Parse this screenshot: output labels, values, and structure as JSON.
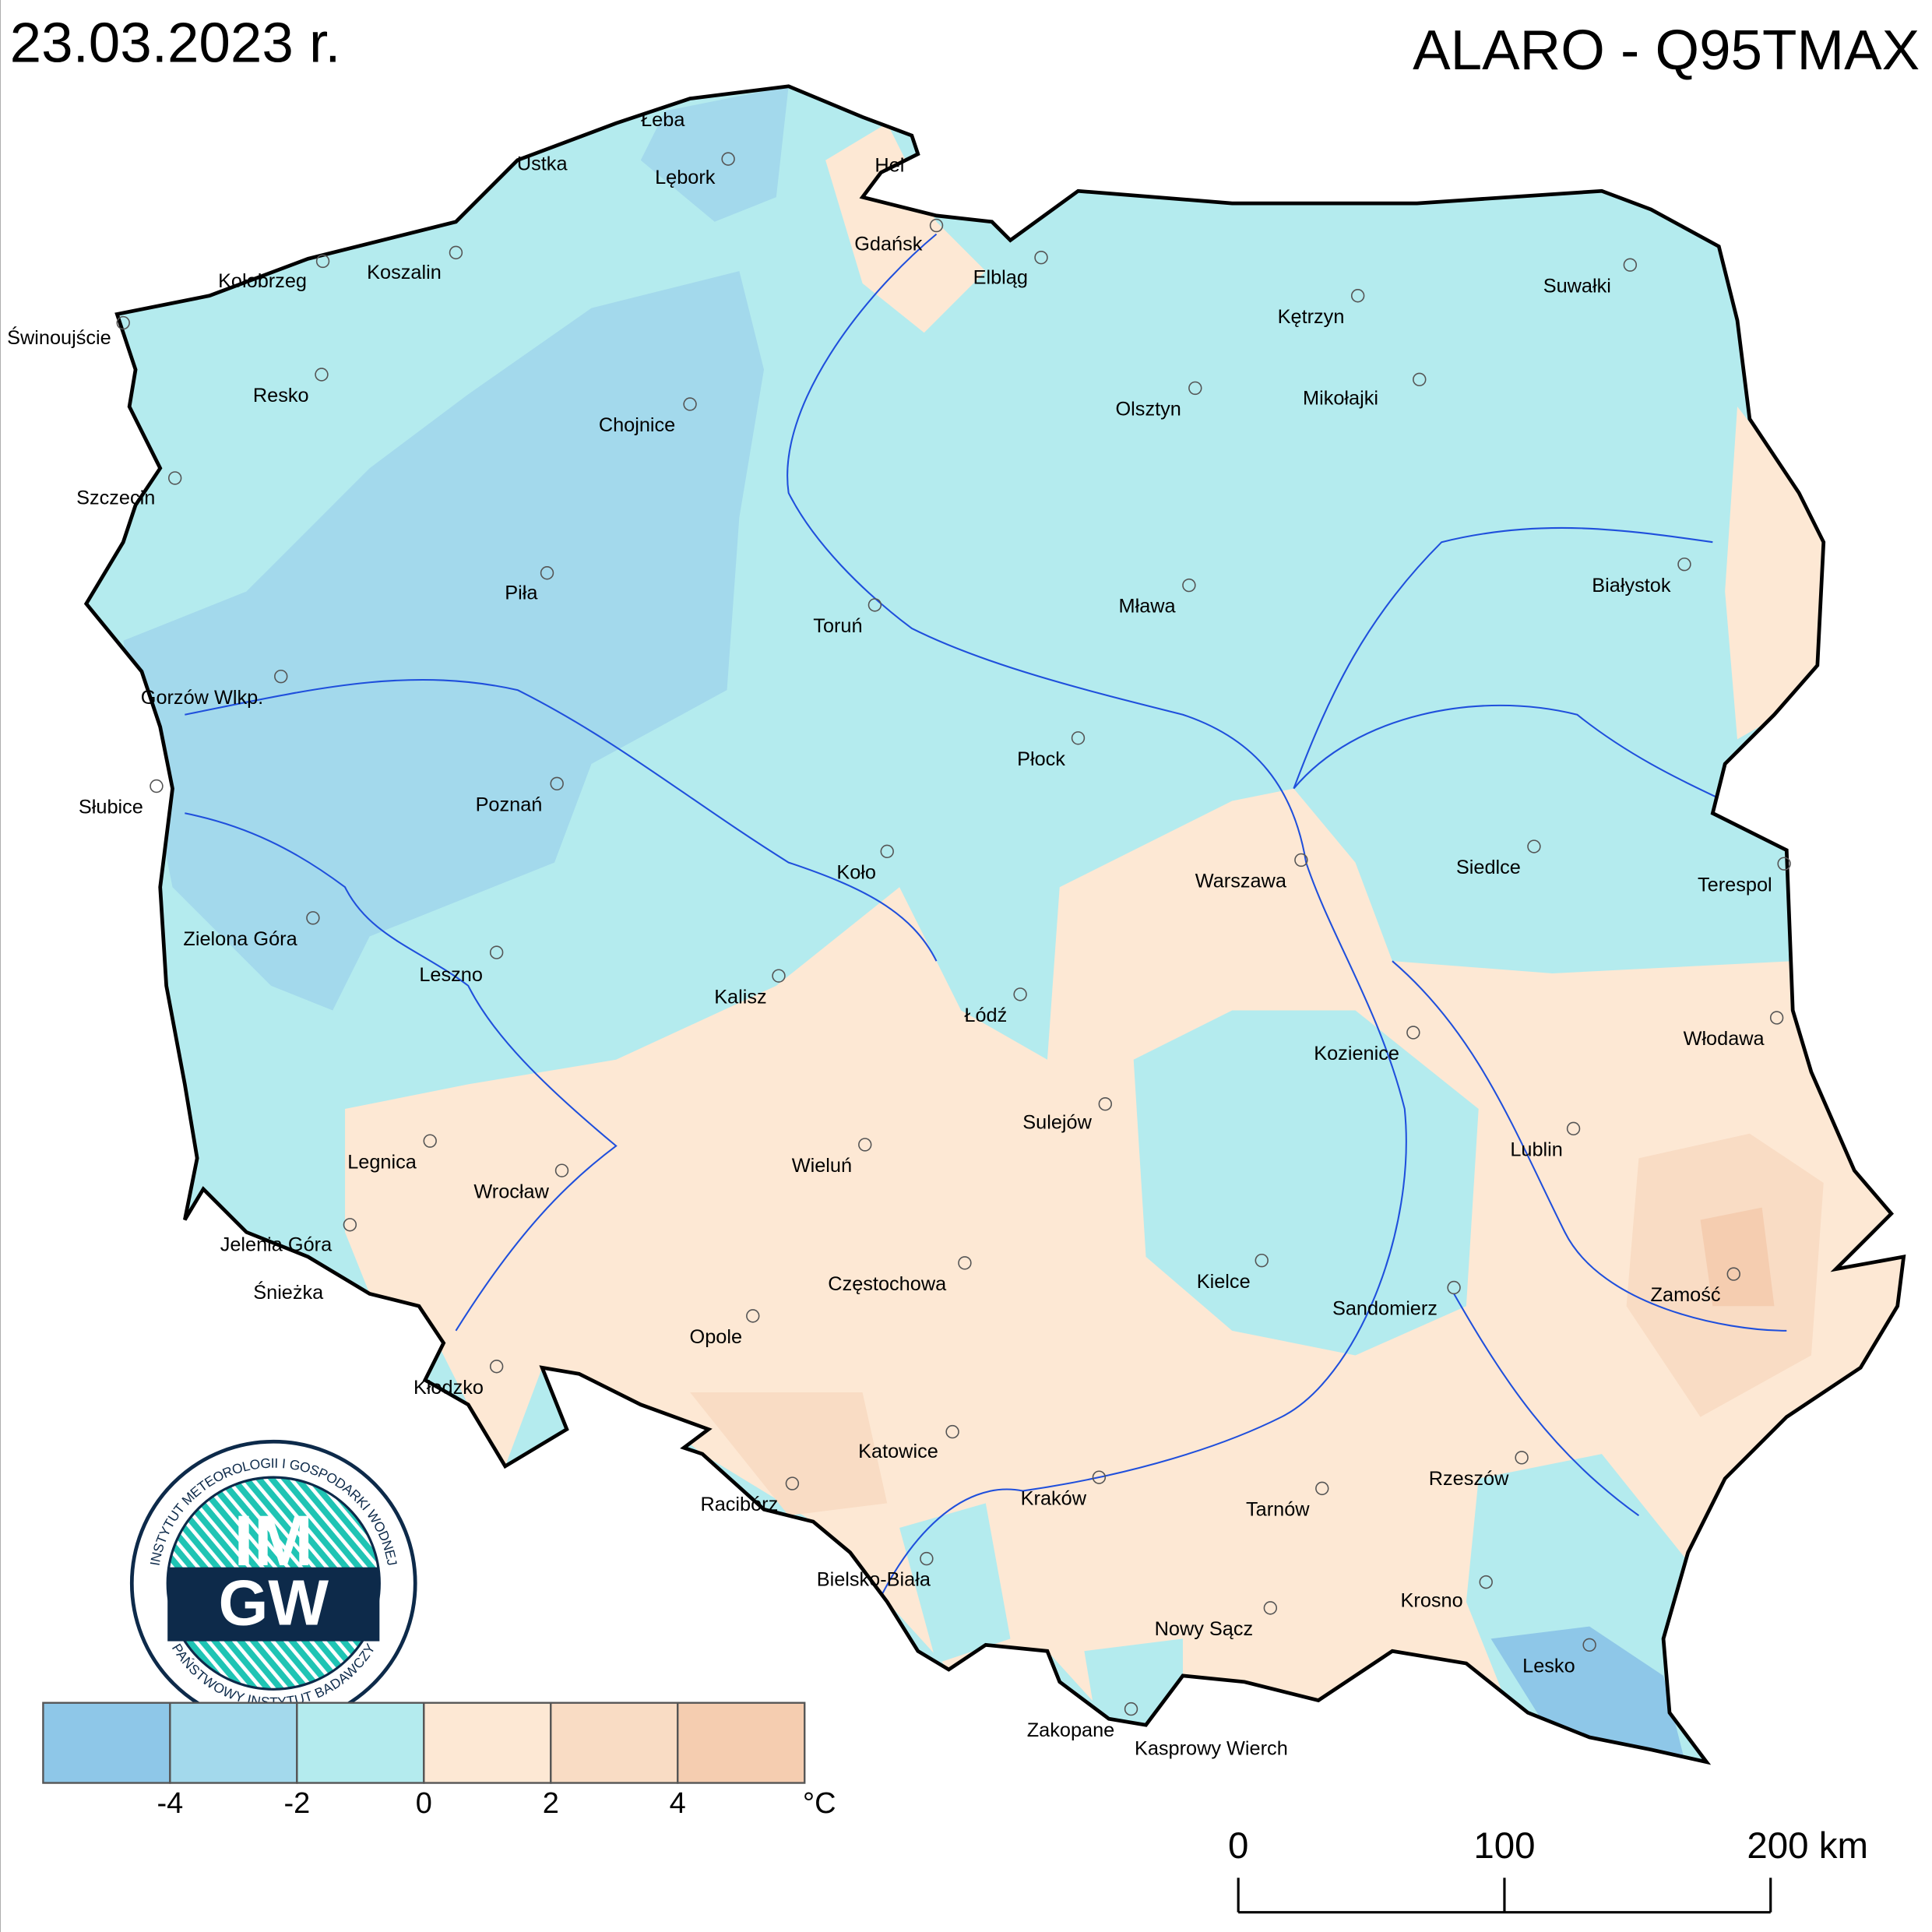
{
  "header": {
    "date": "23.03.2023 r.",
    "title": "ALARO - Q95TMAX"
  },
  "cities": [
    {
      "label": "Łeba"
    },
    {
      "label": "Ustka"
    },
    {
      "label": "Lębork"
    },
    {
      "label": "Hel"
    },
    {
      "label": "Gdańsk"
    },
    {
      "label": "Elbląg"
    },
    {
      "label": "Kołobrzeg"
    },
    {
      "label": "Koszalin"
    },
    {
      "label": "Świnoujście"
    },
    {
      "label": "Resko"
    },
    {
      "label": "Chojnice"
    },
    {
      "label": "Szczecin"
    },
    {
      "label": "Piła"
    },
    {
      "label": "Gorzów Wlkp."
    },
    {
      "label": "Słubice"
    },
    {
      "label": "Poznań"
    },
    {
      "label": "Zielona Góra"
    },
    {
      "label": "Leszno"
    },
    {
      "label": "Legnica"
    },
    {
      "label": "Wrocław"
    },
    {
      "label": "Jelenia Góra"
    },
    {
      "label": "Śnieżka"
    },
    {
      "label": "Kłodzko"
    },
    {
      "label": "Opole"
    },
    {
      "label": "Racibórz"
    },
    {
      "label": "Katowice"
    },
    {
      "label": "Bielsko-Biała"
    },
    {
      "label": "Częstochowa"
    },
    {
      "label": "Wieluń"
    },
    {
      "label": "Kalisz"
    },
    {
      "label": "Koło"
    },
    {
      "label": "Łódź"
    },
    {
      "label": "Toruń"
    },
    {
      "label": "Płock"
    },
    {
      "label": "Sulejów"
    },
    {
      "label": "Warszawa"
    },
    {
      "label": "Mława"
    },
    {
      "label": "Olsztyn"
    },
    {
      "label": "Kętrzyn"
    },
    {
      "label": "Mikołajki"
    },
    {
      "label": "Suwałki"
    },
    {
      "label": "Białystok"
    },
    {
      "label": "Siedlce"
    },
    {
      "label": "Terespol"
    },
    {
      "label": "Włodawa"
    },
    {
      "label": "Kozienice"
    },
    {
      "label": "Lublin"
    },
    {
      "label": "Kielce"
    },
    {
      "label": "Sandomierz"
    },
    {
      "label": "Zamość"
    },
    {
      "label": "Kraków"
    },
    {
      "label": "Tarnów"
    },
    {
      "label": "Rzeszów"
    },
    {
      "label": "Krosno"
    },
    {
      "label": "Nowy Sącz"
    },
    {
      "label": "Lesko"
    },
    {
      "label": "Zakopane"
    },
    {
      "label": "Kasprowy Wierch"
    }
  ],
  "legend": {
    "colors": [
      "#8ec7e8",
      "#a3d9ec",
      "#b4ebee",
      "#fde8d4",
      "#f9dcc4",
      "#f5cdb0"
    ],
    "ticks": [
      -4,
      -2,
      0,
      2,
      4
    ],
    "unit": "°C"
  },
  "scale_bar": {
    "labels": [
      0,
      100,
      "200 km"
    ]
  },
  "logo": {
    "top": "IM",
    "bottom": "GW",
    "ring_top": "INSTYTUT METEOROLOGII I GOSPODARKI WODNEJ",
    "ring_bottom": "PAŃSTWOWY INSTYTUT BADAWCZY"
  }
}
